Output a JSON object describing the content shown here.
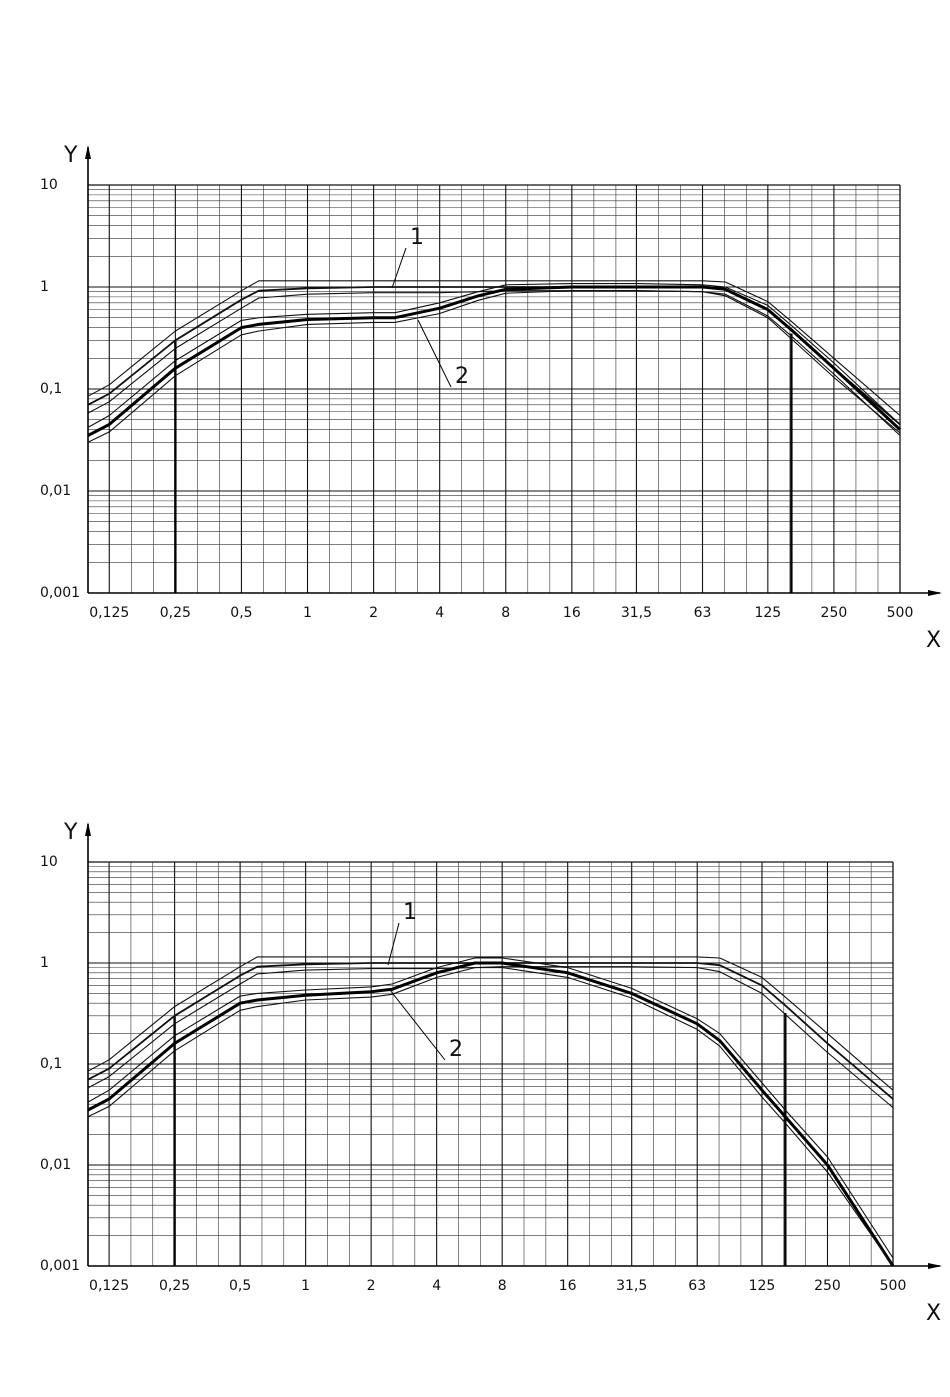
{
  "chart_data": [
    {
      "type": "line",
      "xlabel": "X",
      "ylabel": "Y",
      "xscale": "log",
      "yscale": "log",
      "grid": true,
      "minor_grid": true,
      "xlim": [
        0.1,
        500
      ],
      "ylim": [
        0.001,
        10
      ],
      "xticks": [
        {
          "value": 0.125,
          "label": "0,125"
        },
        {
          "value": 0.25,
          "label": "0,25"
        },
        {
          "value": 0.5,
          "label": "0,5"
        },
        1,
        2,
        4,
        8,
        16,
        {
          "value": 31.5,
          "label": "31,5"
        },
        63,
        125,
        250,
        500
      ],
      "yticks": [
        10,
        1,
        {
          "value": 0.1,
          "label": "0,1"
        },
        {
          "value": 0.01,
          "label": "0,01"
        },
        {
          "value": 0.001,
          "label": "0,001"
        }
      ],
      "x": [
        0.1,
        0.125,
        0.25,
        0.5,
        0.6,
        1,
        2,
        2.5,
        4,
        6,
        8,
        16,
        31.5,
        63,
        80,
        125,
        160,
        250,
        500
      ],
      "series": [
        {
          "color": "#111",
          "values": [
            0.085,
            0.11,
            0.37,
            0.92,
            1.15,
            1.15,
            1.15,
            1.15,
            1.15,
            1.15,
            1.15,
            1.15,
            1.15,
            1.15,
            1.12,
            0.72,
            0.46,
            0.2,
            0.055
          ]
        },
        {
          "name": "1",
          "color": "#111",
          "values": [
            0.07,
            0.09,
            0.3,
            0.75,
            0.92,
            0.97,
            1,
            1,
            1,
            1,
            1,
            1,
            1,
            1,
            0.95,
            0.6,
            0.38,
            0.16,
            0.045
          ]
        },
        {
          "color": "#111",
          "values": [
            0.058,
            0.075,
            0.25,
            0.62,
            0.78,
            0.85,
            0.88,
            0.88,
            0.88,
            0.9,
            0.92,
            0.92,
            0.92,
            0.9,
            0.82,
            0.5,
            0.31,
            0.13,
            0.037
          ]
        },
        {
          "color": "#111",
          "values": [
            0.042,
            0.055,
            0.19,
            0.47,
            0.5,
            0.54,
            0.56,
            0.56,
            0.7,
            0.9,
            1.05,
            1.08,
            1.08,
            1.05,
            1.0,
            0.66,
            0.42,
            0.18,
            0.045
          ]
        },
        {
          "name": "2",
          "color": "#000",
          "values": [
            0.035,
            0.045,
            0.16,
            0.4,
            0.43,
            0.48,
            0.5,
            0.5,
            0.62,
            0.82,
            0.95,
            1,
            1,
            1,
            0.95,
            0.6,
            0.38,
            0.16,
            0.04
          ]
        },
        {
          "color": "#111",
          "values": [
            0.03,
            0.038,
            0.135,
            0.34,
            0.37,
            0.43,
            0.45,
            0.45,
            0.55,
            0.74,
            0.87,
            0.92,
            0.92,
            0.9,
            0.85,
            0.52,
            0.33,
            0.14,
            0.035
          ]
        }
      ],
      "vertical_lines": [
        {
          "x": 0.25,
          "y": 0.3
        },
        {
          "x": 160,
          "y": 0.35
        }
      ]
    },
    {
      "type": "line",
      "xlabel": "X",
      "ylabel": "Y",
      "xscale": "log",
      "yscale": "log",
      "grid": true,
      "minor_grid": true,
      "xlim": [
        0.1,
        500
      ],
      "ylim": [
        0.001,
        10
      ],
      "xticks": [
        {
          "value": 0.125,
          "label": "0,125"
        },
        {
          "value": 0.25,
          "label": "0,25"
        },
        {
          "value": 0.5,
          "label": "0,5"
        },
        1,
        2,
        4,
        8,
        16,
        {
          "value": 31.5,
          "label": "31,5"
        },
        63,
        125,
        250,
        500
      ],
      "yticks": [
        10,
        1,
        {
          "value": 0.1,
          "label": "0,1"
        },
        {
          "value": 0.01,
          "label": "0,01"
        },
        {
          "value": 0.001,
          "label": "0,001"
        }
      ],
      "x": [
        0.1,
        0.125,
        0.25,
        0.5,
        0.6,
        1,
        2,
        2.5,
        4,
        6,
        8,
        16,
        31.5,
        63,
        80,
        125,
        160,
        250,
        500
      ],
      "series": [
        {
          "color": "#111",
          "values": [
            0.085,
            0.11,
            0.37,
            0.92,
            1.15,
            1.15,
            1.15,
            1.15,
            1.15,
            1.15,
            1.15,
            1.15,
            1.15,
            1.15,
            1.12,
            0.72,
            0.46,
            0.2,
            0.055
          ]
        },
        {
          "name": "1",
          "color": "#111",
          "values": [
            0.07,
            0.09,
            0.3,
            0.75,
            0.92,
            0.97,
            1,
            1,
            1,
            1,
            1,
            1,
            1,
            1,
            0.95,
            0.6,
            0.38,
            0.16,
            0.045
          ]
        },
        {
          "color": "#111",
          "values": [
            0.058,
            0.075,
            0.25,
            0.62,
            0.78,
            0.85,
            0.88,
            0.88,
            0.88,
            0.9,
            0.92,
            0.92,
            0.92,
            0.9,
            0.82,
            0.5,
            0.31,
            0.13,
            0.037
          ]
        },
        {
          "color": "#111",
          "values": [
            0.042,
            0.055,
            0.19,
            0.47,
            0.5,
            0.54,
            0.58,
            0.62,
            0.9,
            1.12,
            1.12,
            0.9,
            0.56,
            0.28,
            0.2,
            0.065,
            0.035,
            0.012,
            0.0012
          ]
        },
        {
          "name": "2",
          "color": "#000",
          "values": [
            0.035,
            0.045,
            0.16,
            0.4,
            0.43,
            0.48,
            0.52,
            0.55,
            0.8,
            1,
            1,
            0.8,
            0.5,
            0.25,
            0.17,
            0.055,
            0.03,
            0.01,
            0.001
          ]
        },
        {
          "color": "#111",
          "values": [
            0.03,
            0.038,
            0.135,
            0.34,
            0.37,
            0.43,
            0.46,
            0.49,
            0.72,
            0.9,
            0.9,
            0.72,
            0.45,
            0.22,
            0.15,
            0.047,
            0.026,
            0.0085,
            0.001
          ]
        }
      ],
      "vertical_lines": [
        {
          "x": 0.25,
          "y": 0.3
        },
        {
          "x": 160,
          "y": 0.32
        }
      ]
    }
  ]
}
